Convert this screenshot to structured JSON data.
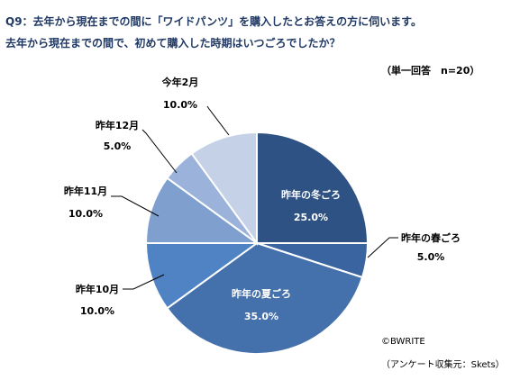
{
  "header": {
    "question_line1": "Q9：去年から現在までの間に「ワイドパンツ」を購入したとお答えの方に伺います。",
    "question_line2": "去年から現在までの間で、初めて購入した時期はいつごろでしたか？",
    "meta": "（単一回答　n=20）"
  },
  "footer": {
    "copyright": "©BWRITE",
    "source": "（アンケート収集元：Skets）"
  },
  "chart_data": {
    "type": "pie",
    "start": "12 o'clock, clockwise",
    "slices": [
      {
        "label": "昨年の冬ごろ",
        "value": 25.0,
        "display": "25.0%",
        "color": "#2e5283",
        "label_inside": true
      },
      {
        "label": "昨年の春ごろ",
        "value": 5.0,
        "display": "5.0%",
        "color": "#3a64a0",
        "label_inside": false
      },
      {
        "label": "昨年の夏ごろ",
        "value": 35.0,
        "display": "35.0%",
        "color": "#4470ac",
        "label_inside": true
      },
      {
        "label": "昨年10月",
        "value": 10.0,
        "display": "10.0%",
        "color": "#4f83c4",
        "label_inside": false
      },
      {
        "label": "昨年11月",
        "value": 10.0,
        "display": "10.0%",
        "color": "#7f9fcf",
        "label_inside": false
      },
      {
        "label": "昨年12月",
        "value": 5.0,
        "display": "5.0%",
        "color": "#9bb3da",
        "label_inside": false
      },
      {
        "label": "今年2月",
        "value": 10.0,
        "display": "10.0%",
        "color": "#c5d1e6",
        "label_inside": false
      }
    ]
  }
}
